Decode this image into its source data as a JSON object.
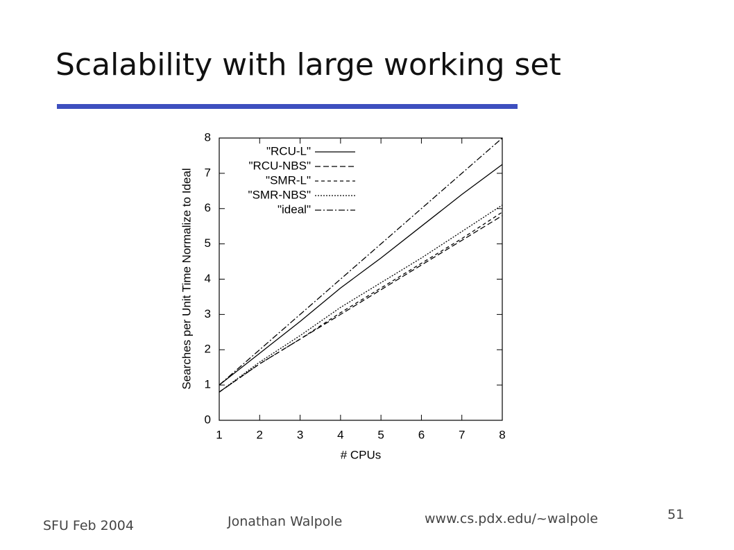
{
  "slide": {
    "title": "Scalability with large working set",
    "footer_left": "SFU Feb 2004",
    "footer_author": "Jonathan Walpole",
    "footer_url": "www.cs.pdx.edu/~walpole",
    "page_number": "51"
  },
  "chart_data": {
    "type": "line",
    "x_label": "# CPUs",
    "y_label": "Searches per Unit Time Normalize to Ideal",
    "x": [
      1,
      2,
      3,
      4,
      5,
      6,
      7,
      8
    ],
    "xlim": [
      1,
      8
    ],
    "xticks": [
      1,
      2,
      3,
      4,
      5,
      6,
      7,
      8
    ],
    "ylim": [
      0,
      8
    ],
    "yticks": [
      0,
      1,
      2,
      3,
      4,
      5,
      6,
      7,
      8
    ],
    "legend": "upper-left",
    "series": [
      {
        "name": "\"RCU-L\"",
        "color": "#000000",
        "dash": "none",
        "values": [
          1,
          1.9,
          2.8,
          3.75,
          4.6,
          5.5,
          6.4,
          7.25
        ]
      },
      {
        "name": "\"RCU-NBS\"",
        "color": "#000000",
        "dash": "8,4",
        "values": [
          0.8,
          1.6,
          2.3,
          3.0,
          3.7,
          4.4,
          5.1,
          5.8
        ]
      },
      {
        "name": "\"SMR-L\"",
        "color": "#000000",
        "dash": "5,4",
        "values": [
          0.8,
          1.6,
          2.3,
          3.05,
          3.75,
          4.45,
          5.15,
          5.9
        ]
      },
      {
        "name": "\"SMR-NBS\"",
        "color": "#000000",
        "dash": "2,2",
        "values": [
          0.8,
          1.65,
          2.4,
          3.2,
          3.9,
          4.6,
          5.35,
          6.1
        ]
      },
      {
        "name": "\"ideal\"",
        "color": "#000000",
        "dash": "9,3,2,3",
        "values": [
          1,
          2,
          3,
          4,
          5,
          6,
          7,
          8
        ]
      }
    ]
  }
}
